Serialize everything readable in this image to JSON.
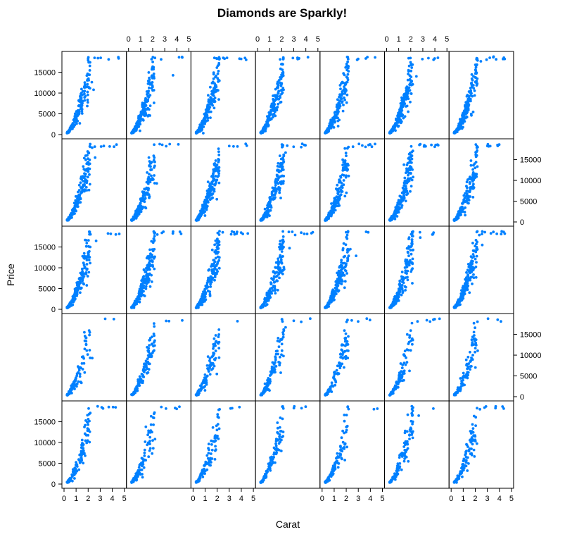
{
  "chart_data": {
    "type": "scatter",
    "title": "Diamonds are Sparkly!",
    "xlabel": "Carat",
    "ylabel": "Price",
    "layout": {
      "columns": 7,
      "rows": 5
    },
    "xlim": [
      0,
      5
    ],
    "ylim": [
      0,
      19000
    ],
    "x_ticks": [
      0,
      1,
      2,
      3,
      4,
      5
    ],
    "y_ticks": [
      0,
      5000,
      10000,
      15000
    ],
    "point_color": "#0080ff",
    "grid": false,
    "legend": "none"
  }
}
